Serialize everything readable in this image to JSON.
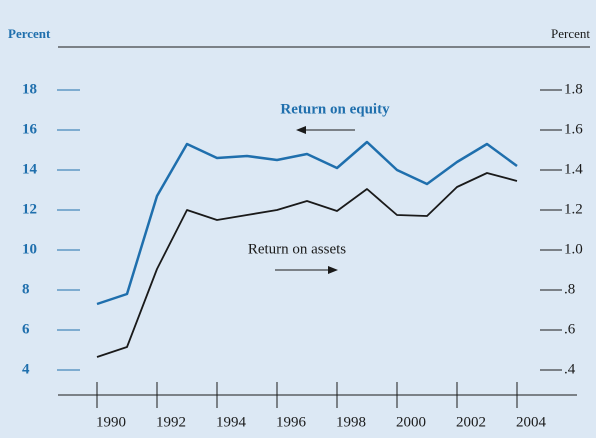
{
  "chart_data": {
    "type": "line",
    "y_label": "Percent",
    "y2_label": "Percent",
    "x": [
      1990,
      1991,
      1992,
      1993,
      1994,
      1995,
      1996,
      1997,
      1998,
      1999,
      2000,
      2001,
      2002,
      2003,
      2004
    ],
    "series": [
      {
        "name": "Return on equity",
        "color": "#1f6fad",
        "axis": "y",
        "values": [
          7.3,
          7.8,
          12.7,
          15.3,
          14.6,
          14.7,
          14.5,
          14.8,
          14.1,
          15.4,
          14.0,
          13.3,
          14.4,
          15.3,
          14.2
        ]
      },
      {
        "name": "Return on assets",
        "color": "#1a1a1a",
        "axis": "y2",
        "values": [
          0.465,
          0.515,
          0.905,
          1.2,
          1.15,
          1.175,
          1.2,
          1.245,
          1.195,
          1.305,
          1.175,
          1.17,
          1.315,
          1.385,
          1.345
        ]
      }
    ],
    "xlim": [
      1988.7,
      2006
    ],
    "xticks": [
      1990,
      1992,
      1994,
      1996,
      1998,
      2000,
      2002,
      2004
    ],
    "ylim": [
      4,
      18
    ],
    "yticks": [
      4,
      6,
      8,
      10,
      12,
      14,
      16,
      18
    ],
    "y2lim": [
      0.4,
      1.8
    ],
    "y2ticks": [
      {
        "value": 0.4,
        "label": ".4"
      },
      {
        "value": 0.6,
        "label": ".6"
      },
      {
        "value": 0.8,
        "label": ".8"
      },
      {
        "value": 1.0,
        "label": "1.0"
      },
      1.2,
      1.4,
      1.6,
      1.8
    ]
  }
}
